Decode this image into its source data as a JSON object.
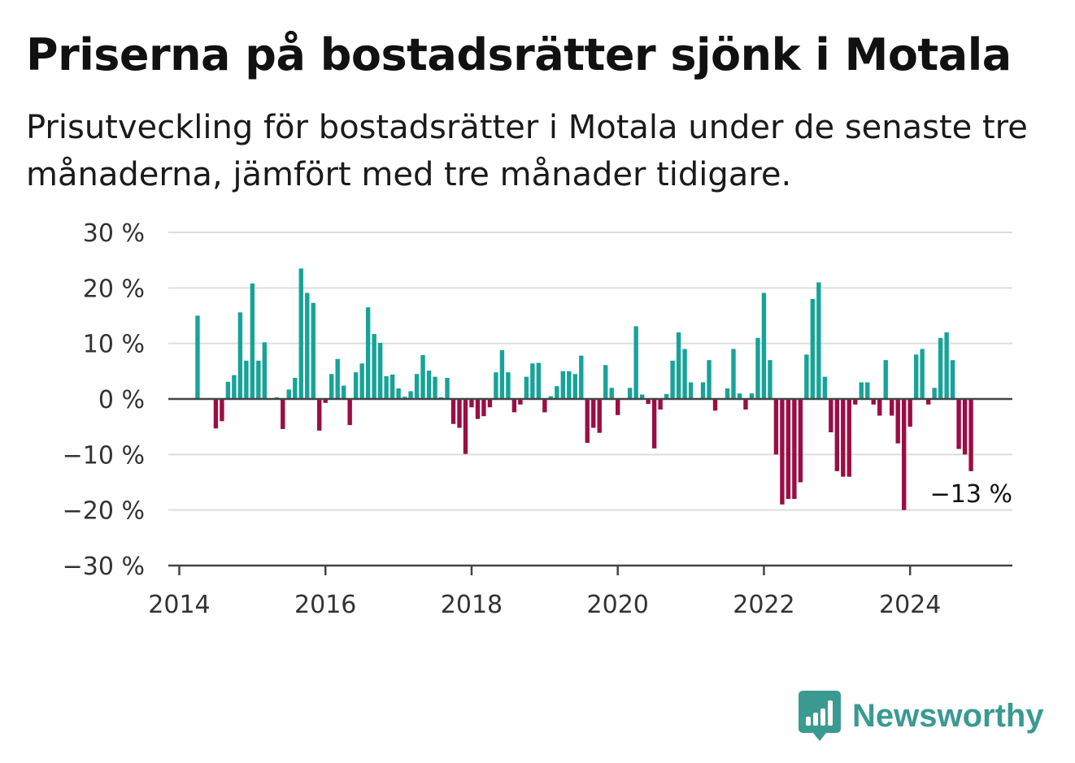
{
  "chart_data": {
    "type": "bar",
    "title": "Priserna på bostadsrätter sjönk i Motala",
    "subtitle": "Prisutveckling för bostadsrätter i Motala under de senaste tre månaderna, jämfört med tre månader tidigare.",
    "xlabel": "",
    "ylabel": "",
    "ylim": [
      -30,
      30
    ],
    "xlim": [
      2013.85,
      2025.4
    ],
    "y_ticks": [
      30,
      20,
      10,
      0,
      -10,
      -20,
      -30
    ],
    "y_tick_labels": [
      "30 %",
      "20 %",
      "10 %",
      "0 %",
      "−10 %",
      "−20 %",
      "−30 %"
    ],
    "x_ticks": [
      2014,
      2016,
      2018,
      2020,
      2022,
      2024
    ],
    "x_tick_labels": [
      "2014",
      "2016",
      "2018",
      "2020",
      "2022",
      "2024"
    ],
    "grid": true,
    "colors": {
      "positive": "#17a398",
      "negative": "#9b0d45",
      "grid": "#dddddd",
      "axis": "#444444"
    },
    "start": {
      "year": 2014,
      "month": 4
    },
    "values": [
      15,
      0,
      0,
      -5.3,
      -4,
      3.1,
      4.3,
      15.6,
      6.9,
      20.8,
      6.9,
      10.2,
      0,
      0.3,
      -5.4,
      1.7,
      3.8,
      23.5,
      19.1,
      17.3,
      -5.7,
      -0.7,
      4.5,
      7.2,
      2.4,
      -4.7,
      4.8,
      6.4,
      16.5,
      11.7,
      10.1,
      4.1,
      4.4,
      1.9,
      0.4,
      1.4,
      4.5,
      7.9,
      5.1,
      4,
      0.3,
      3.8,
      -4.5,
      -5.2,
      -9.9,
      -1.5,
      -3.6,
      -3.1,
      -1.5,
      4.8,
      8.8,
      4.8,
      -2.4,
      -1,
      4,
      6.4,
      6.5,
      -2.4,
      0.5,
      2.3,
      5,
      5,
      4.5,
      7.8,
      -7.9,
      -5.2,
      -6.1,
      6.1,
      2,
      -2.9,
      0.1,
      2,
      13.1,
      0.8,
      -0.9,
      -8.9,
      -1.9,
      0.9,
      6.9,
      12,
      9,
      3,
      0,
      3,
      7,
      -2.1,
      0,
      1.9,
      9,
      1,
      -1.9,
      1,
      11,
      19.1,
      7,
      -10,
      -19,
      -18,
      -18,
      -15,
      8,
      18,
      21,
      4,
      -6,
      -13,
      -14,
      -14,
      -1,
      3,
      3,
      -1,
      -3,
      7,
      -3,
      -8,
      -20,
      -5,
      8,
      9,
      -1,
      2,
      11,
      12,
      7,
      -9,
      -10,
      -13
    ],
    "annotation": "−13 %"
  },
  "brand": {
    "name": "Newsworthy",
    "icon": "bar-chart-speech-bubble-icon",
    "color": "#3a9a92"
  }
}
